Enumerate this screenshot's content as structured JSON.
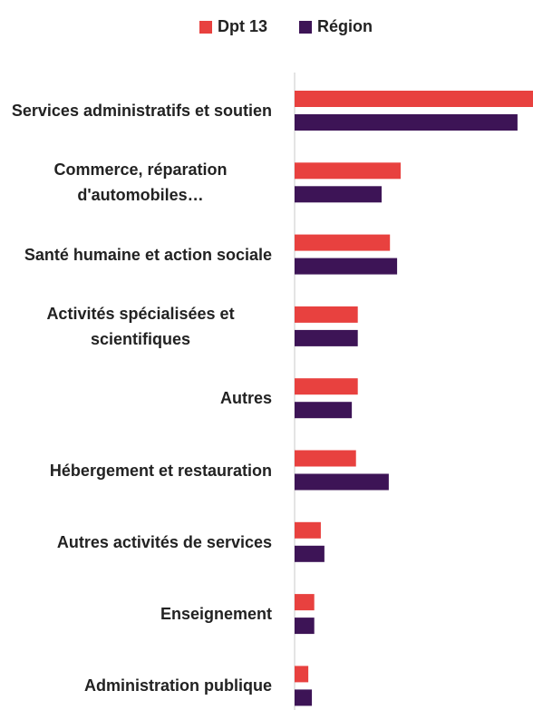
{
  "chart_data": {
    "type": "bar",
    "orientation": "horizontal",
    "categories": [
      "Services administratifs et soutien",
      "Commerce, réparation d'automobiles…",
      "Santé humaine et action sociale",
      "Activités spécialisées et scientifiques",
      "Autres",
      "Hébergement et restauration",
      "Autres activités de services",
      "Enseignement",
      "Administration publique"
    ],
    "series": [
      {
        "name": "Dpt 13",
        "color": "#e8413f",
        "values": [
          40,
          17.8,
          16,
          10.6,
          10.6,
          10.3,
          4.4,
          3.3,
          2.3
        ]
      },
      {
        "name": "Région",
        "color": "#3d1456",
        "values": [
          37.4,
          14.6,
          17.2,
          10.6,
          9.6,
          15.8,
          5,
          3.3,
          2.9
        ]
      }
    ],
    "xlim": [
      0,
      40
    ],
    "legend": "top"
  }
}
